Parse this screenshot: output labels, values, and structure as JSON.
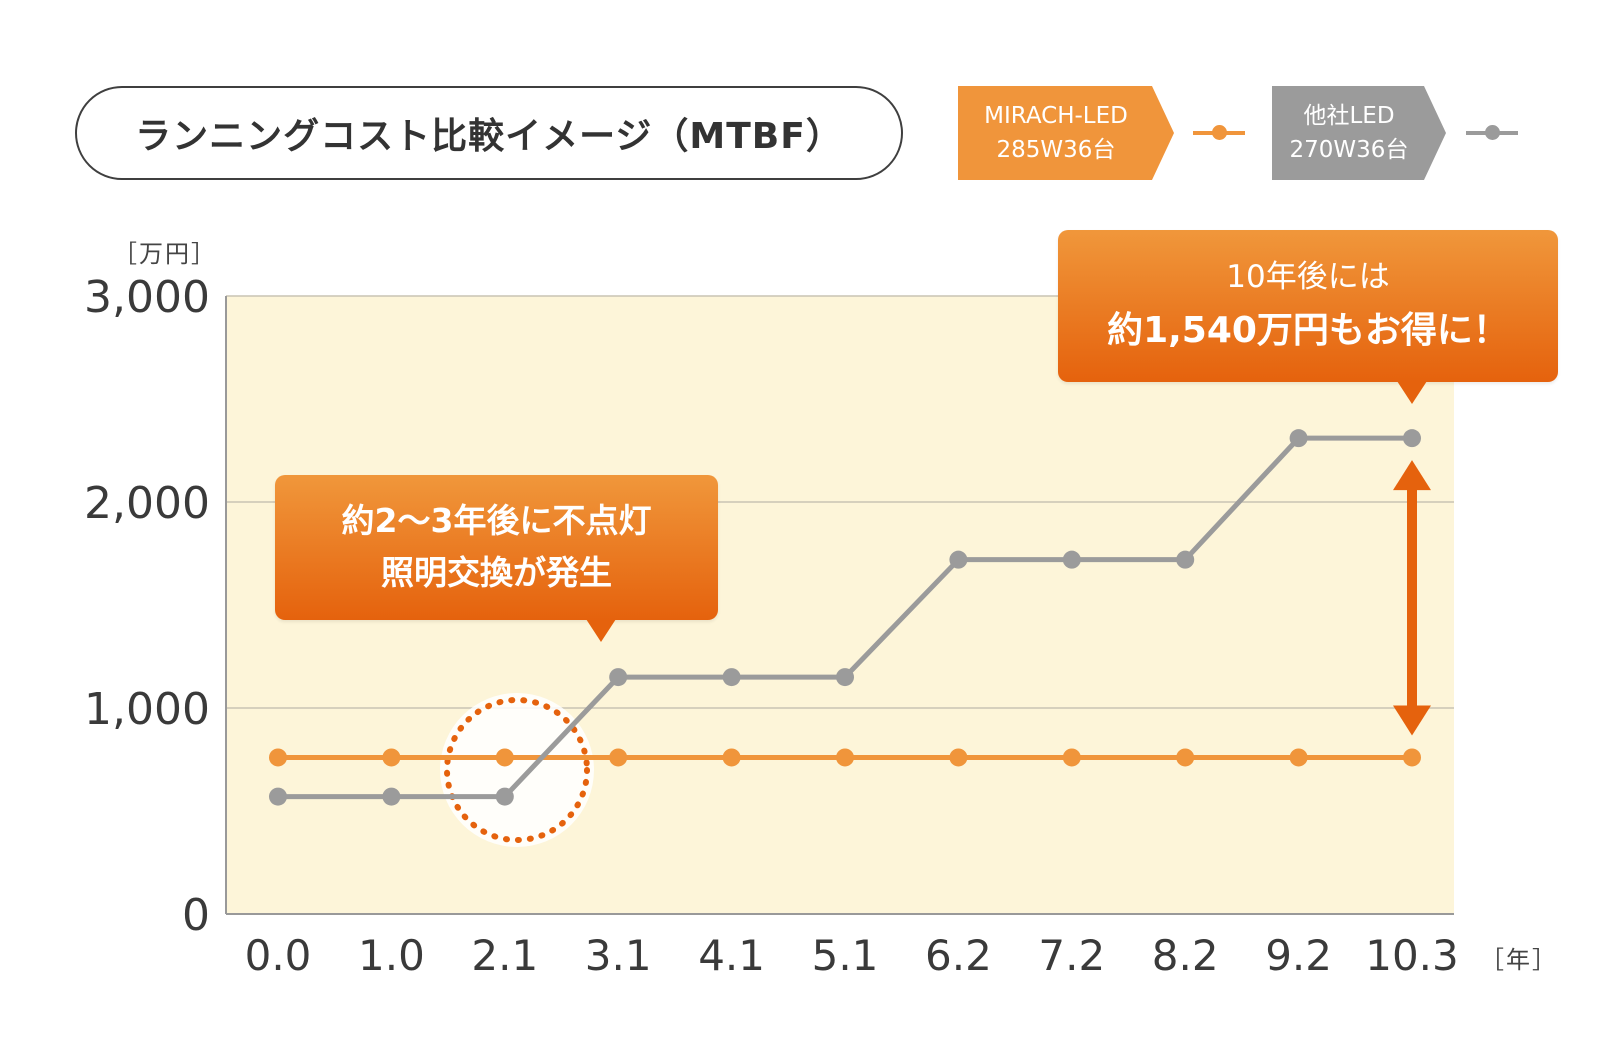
{
  "title": "ランニングコスト比較イメージ（MTBF）",
  "legend": [
    {
      "line1": "MIRACH-LED",
      "line2": "285W36台",
      "color": "#f0953b"
    },
    {
      "line1": "他社LED",
      "line2": "270W36台",
      "color": "#9b9b9b"
    }
  ],
  "units": {
    "y": "［万円］",
    "x": "［年］"
  },
  "callouts": {
    "left": {
      "line1": "約2〜3年後に不点灯",
      "line2": "照明交換が発生"
    },
    "right": {
      "line1": "10年後には",
      "line2": "約1,540万円もお得に！"
    }
  },
  "colors": {
    "orange": "#f0953b",
    "gray": "#9b9b9b",
    "accent": "#e5620d",
    "plot_bg": "#fdf5d9"
  },
  "chart_data": {
    "type": "line",
    "title": "ランニングコスト比較イメージ（MTBF）",
    "xlabel": "［年］",
    "ylabel": "［万円］",
    "categories": [
      "0.0",
      "1.0",
      "2.1",
      "3.1",
      "4.1",
      "5.1",
      "6.2",
      "7.2",
      "8.2",
      "9.2",
      "10.3"
    ],
    "yticks": [
      0,
      1000,
      2000,
      3000
    ],
    "ytick_labels": [
      "0",
      "1,000",
      "2,000",
      "3,000"
    ],
    "ylim": [
      0,
      3000
    ],
    "grid": true,
    "series": [
      {
        "name": "MIRACH-LED 285W36台",
        "color": "#f0953b",
        "values": [
          760,
          760,
          760,
          760,
          760,
          760,
          760,
          760,
          760,
          760,
          760
        ]
      },
      {
        "name": "他社LED 270W36台",
        "color": "#9b9b9b",
        "values": [
          570,
          570,
          570,
          1150,
          1150,
          1150,
          1720,
          1720,
          1720,
          2310,
          2310
        ]
      }
    ]
  }
}
